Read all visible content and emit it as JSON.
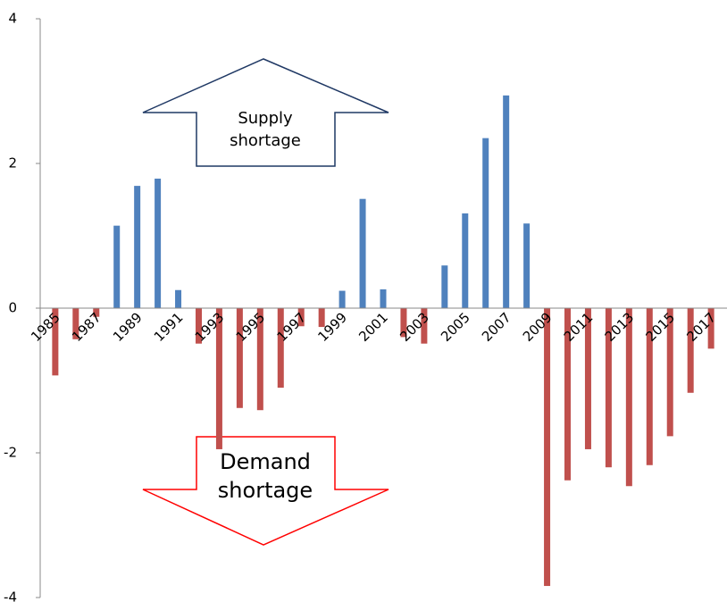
{
  "chart_data": {
    "type": "bar",
    "categories": [
      "1985",
      null,
      "1987",
      null,
      "1989",
      null,
      "1991",
      null,
      "1993",
      null,
      "1995",
      null,
      "1997",
      null,
      "1999",
      null,
      "2001",
      null,
      "2003",
      null,
      "2005",
      null,
      "2007",
      null,
      "2009",
      null,
      "2011",
      null,
      "2013",
      null,
      "2015",
      null,
      "2017"
    ],
    "values": [
      -0.93,
      -0.43,
      -0.12,
      1.14,
      1.69,
      1.79,
      0.25,
      -0.49,
      -1.95,
      -1.38,
      -1.41,
      -1.1,
      -0.25,
      -0.26,
      0.24,
      1.51,
      0.26,
      -0.4,
      -0.49,
      0.59,
      1.31,
      2.35,
      2.94,
      1.17,
      -3.84,
      -2.38,
      -1.95,
      -2.2,
      -2.46,
      -2.17,
      -1.77,
      -1.17,
      -0.56
    ],
    "positive_color": "#4f81bd",
    "negative_color": "#c0504d",
    "ylim": [
      -4,
      4
    ],
    "yticks": [
      -4,
      -2,
      0,
      2,
      4
    ],
    "annotations": [
      {
        "lines": [
          "Supply",
          "shortage"
        ]
      },
      {
        "lines": [
          "Demand",
          "shortage"
        ]
      }
    ]
  }
}
